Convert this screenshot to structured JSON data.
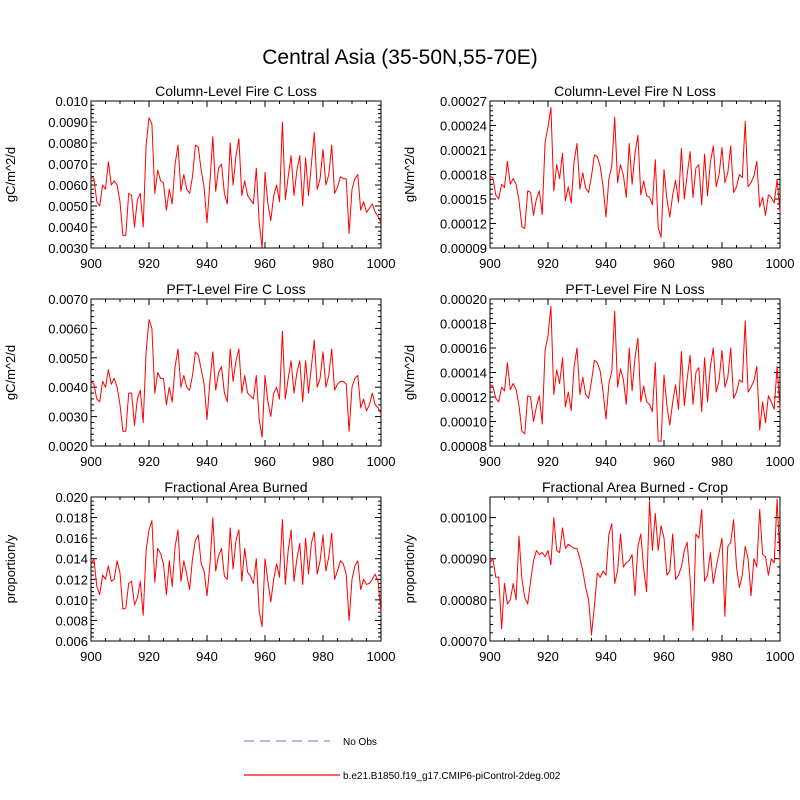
{
  "figure": {
    "title": "Central Asia (35-50N,55-70E)"
  },
  "legend": [
    {
      "label": "No Obs",
      "color": "#9a9ae8",
      "style": "dashed"
    },
    {
      "label": "b.e21.B1850.f19_g17.CMIP6-piControl-2deg.002",
      "color": "#ff0000",
      "style": "solid"
    }
  ],
  "chart_data": [
    {
      "type": "line",
      "title": "Column-Level Fire C Loss",
      "xlabel": "",
      "ylabel": "gC/m^2/d",
      "xlim": [
        900,
        1000
      ],
      "ylim": [
        0.003,
        0.01
      ],
      "xticks": [
        "900",
        "920",
        "940",
        "960",
        "980",
        "1000"
      ],
      "yticks": [
        "0.0030",
        "0.0040",
        "0.0050",
        "0.0060",
        "0.0070",
        "0.0080",
        "0.0090",
        "0.010"
      ],
      "x_start": 900,
      "x_step": 1,
      "series": [
        {
          "name": "b.e21.B1850.f19_g17.CMIP6-piControl-2deg.002",
          "color": "#ff0000",
          "values": [
            0.0064,
            0.0063,
            0.0052,
            0.005,
            0.006,
            0.0058,
            0.0071,
            0.006,
            0.0062,
            0.006,
            0.0052,
            0.0036,
            0.0036,
            0.0056,
            0.0055,
            0.004,
            0.0053,
            0.0056,
            0.004,
            0.0079,
            0.0092,
            0.0089,
            0.0056,
            0.0067,
            0.0062,
            0.0061,
            0.0048,
            0.0058,
            0.0051,
            0.007,
            0.0079,
            0.0057,
            0.0065,
            0.0058,
            0.0056,
            0.0064,
            0.0079,
            0.0078,
            0.0067,
            0.0059,
            0.0042,
            0.0061,
            0.0083,
            0.0057,
            0.0068,
            0.007,
            0.0056,
            0.0051,
            0.008,
            0.006,
            0.0074,
            0.0082,
            0.0055,
            0.0062,
            0.0055,
            0.0053,
            0.0051,
            0.0068,
            0.0042,
            0.003,
            0.0066,
            0.0051,
            0.0043,
            0.0055,
            0.006,
            0.0052,
            0.009,
            0.0053,
            0.0064,
            0.0074,
            0.0055,
            0.0067,
            0.0074,
            0.005,
            0.0073,
            0.0055,
            0.007,
            0.0085,
            0.0058,
            0.0063,
            0.0077,
            0.006,
            0.0065,
            0.0079,
            0.0056,
            0.0059,
            0.0064,
            0.0063,
            0.0063,
            0.0037,
            0.0058,
            0.0063,
            0.0065,
            0.0048,
            0.0052,
            0.0047,
            0.0049,
            0.0051,
            0.0047,
            0.0045,
            0.0042
          ]
        }
      ]
    },
    {
      "type": "line",
      "title": "Column-Level Fire N Loss",
      "xlabel": "",
      "ylabel": "gN/m^2/d",
      "xlim": [
        900,
        1000
      ],
      "ylim": [
        9e-05,
        0.00027
      ],
      "xticks": [
        "900",
        "920",
        "940",
        "960",
        "980",
        "1000"
      ],
      "yticks": [
        "0.00009",
        "0.00012",
        "0.00015",
        "0.00018",
        "0.00021",
        "0.00024",
        "0.00027"
      ],
      "x_start": 900,
      "x_step": 1,
      "series": [
        {
          "name": "b.e21.B1850.f19_g17.CMIP6-piControl-2deg.002",
          "color": "#ff0000",
          "values": [
            0.000178,
            0.000176,
            0.000155,
            0.00015,
            0.000168,
            0.000164,
            0.000196,
            0.000168,
            0.000175,
            0.000168,
            0.000148,
            0.000116,
            0.000114,
            0.00016,
            0.000158,
            0.00013,
            0.00015,
            0.00016,
            0.000131,
            0.00022,
            0.000238,
            0.000262,
            0.00016,
            0.000192,
            0.000175,
            0.000206,
            0.000148,
            0.000165,
            0.000145,
            0.000196,
            0.000218,
            0.000162,
            0.000182,
            0.000163,
            0.000158,
            0.000178,
            0.000204,
            0.000202,
            0.00019,
            0.000165,
            0.000128,
            0.000175,
            0.00019,
            0.00025,
            0.00017,
            0.000192,
            0.000179,
            0.000152,
            0.000218,
            0.000168,
            0.000206,
            0.000228,
            0.000155,
            0.000172,
            0.000154,
            0.000152,
            0.000143,
            0.000198,
            0.000115,
            0.000103,
            0.000186,
            0.00015,
            0.000128,
            0.000155,
            0.000173,
            0.000146,
            0.000212,
            0.00015,
            0.00018,
            0.000208,
            0.000152,
            0.000188,
            0.000192,
            0.000143,
            0.000205,
            0.000154,
            0.000195,
            0.000215,
            0.000165,
            0.00018,
            0.000213,
            0.00017,
            0.000182,
            0.000215,
            0.000158,
            0.000165,
            0.00018,
            0.000176,
            0.000245,
            0.000165,
            0.00017,
            0.000178,
            0.000196,
            0.00014,
            0.000152,
            0.00013,
            0.000155,
            0.000152,
            0.000145,
            0.000174,
            0.000133
          ]
        }
      ]
    },
    {
      "type": "line",
      "title": "PFT-Level Fire C Loss",
      "xlabel": "",
      "ylabel": "gC/m^2/d",
      "xlim": [
        900,
        1000
      ],
      "ylim": [
        0.002,
        0.007
      ],
      "xticks": [
        "900",
        "920",
        "940",
        "960",
        "980",
        "1000"
      ],
      "yticks": [
        "0.0020",
        "0.0030",
        "0.0040",
        "0.0050",
        "0.0060",
        "0.0070"
      ],
      "x_start": 900,
      "x_step": 1,
      "series": [
        {
          "name": "b.e21.B1850.f19_g17.CMIP6-piControl-2deg.002",
          "color": "#ff0000",
          "values": [
            0.0042,
            0.0041,
            0.0036,
            0.0035,
            0.0042,
            0.004,
            0.0046,
            0.0041,
            0.0043,
            0.004,
            0.0034,
            0.0025,
            0.0025,
            0.0038,
            0.0038,
            0.0027,
            0.0036,
            0.0039,
            0.0028,
            0.0052,
            0.0063,
            0.006,
            0.0038,
            0.0045,
            0.0043,
            0.0043,
            0.0034,
            0.004,
            0.0035,
            0.0047,
            0.0053,
            0.004,
            0.0044,
            0.004,
            0.0039,
            0.0044,
            0.0052,
            0.0051,
            0.0046,
            0.0041,
            0.0029,
            0.0042,
            0.0052,
            0.0039,
            0.0045,
            0.0047,
            0.0038,
            0.0035,
            0.0053,
            0.0042,
            0.0049,
            0.0053,
            0.0038,
            0.0044,
            0.0038,
            0.0037,
            0.0036,
            0.0044,
            0.0029,
            0.0023,
            0.0044,
            0.0035,
            0.003,
            0.0038,
            0.004,
            0.0036,
            0.0059,
            0.0036,
            0.0043,
            0.0049,
            0.0038,
            0.0045,
            0.0049,
            0.0035,
            0.0049,
            0.0038,
            0.0047,
            0.0056,
            0.004,
            0.0043,
            0.0052,
            0.004,
            0.0044,
            0.0053,
            0.0039,
            0.0041,
            0.0042,
            0.0042,
            0.0041,
            0.0025,
            0.004,
            0.0043,
            0.0044,
            0.0033,
            0.0036,
            0.0032,
            0.0034,
            0.0038,
            0.0034,
            0.0033,
            0.0031
          ]
        }
      ]
    },
    {
      "type": "line",
      "title": "PFT-Level Fire N Loss",
      "xlabel": "",
      "ylabel": "gN/m^2/d",
      "xlim": [
        900,
        1000
      ],
      "ylim": [
        8e-05,
        0.0002
      ],
      "xticks": [
        "900",
        "920",
        "940",
        "960",
        "980",
        "1000"
      ],
      "yticks": [
        "0.00008",
        "0.00010",
        "0.00012",
        "0.00014",
        "0.00016",
        "0.00018",
        "0.00020"
      ],
      "x_start": 900,
      "x_step": 1,
      "series": [
        {
          "name": "b.e21.B1850.f19_g17.CMIP6-piControl-2deg.002",
          "color": "#ff0000",
          "values": [
            0.00013,
            0.000129,
            0.000119,
            0.000116,
            0.000128,
            0.000125,
            0.000148,
            0.000126,
            0.000131,
            0.000126,
            0.000113,
            9.2e-05,
            9e-05,
            0.000121,
            0.00012,
            0.0001,
            0.000112,
            0.000121,
            9.8e-05,
            0.000158,
            0.00017,
            0.000194,
            0.000122,
            0.000142,
            0.000131,
            0.000152,
            0.000112,
            0.000124,
            0.000109,
            0.000145,
            0.00016,
            0.000122,
            0.000136,
            0.000122,
            0.000119,
            0.000133,
            0.00015,
            0.000148,
            0.000141,
            0.000124,
            0.000102,
            0.000131,
            0.000141,
            0.00019,
            0.000128,
            0.000143,
            0.000134,
            0.000114,
            0.00016,
            0.000125,
            0.000152,
            0.000168,
            0.000116,
            0.000129,
            0.000116,
            0.000114,
            0.000108,
            0.000148,
            8.4e-05,
            8.4e-05,
            0.000138,
            0.000113,
            9.7e-05,
            0.000116,
            0.00013,
            0.00011,
            0.000157,
            0.000113,
            0.000135,
            0.000154,
            0.000114,
            0.00014,
            0.000144,
            0.000108,
            0.000152,
            0.000116,
            0.000145,
            0.00016,
            0.000124,
            0.000134,
            0.000158,
            0.000128,
            0.000136,
            0.00016,
            0.000119,
            0.000124,
            0.000134,
            0.000132,
            0.000182,
            0.000124,
            0.000128,
            0.000133,
            0.000145,
            9.3e-05,
            0.000116,
            9.9e-05,
            0.000121,
            0.000116,
            0.00011,
            0.000145,
            0.00011
          ]
        }
      ]
    },
    {
      "type": "line",
      "title": "Fractional Area Burned",
      "xlabel": "",
      "ylabel": "proportion/y",
      "xlim": [
        900,
        1000
      ],
      "ylim": [
        0.006,
        0.02
      ],
      "xticks": [
        "900",
        "920",
        "940",
        "960",
        "980",
        "1000"
      ],
      "yticks": [
        "0.006",
        "0.008",
        "0.010",
        "0.012",
        "0.014",
        "0.016",
        "0.018",
        "0.020"
      ],
      "x_start": 900,
      "x_step": 1,
      "series": [
        {
          "name": "b.e21.B1850.f19_g17.CMIP6-piControl-2deg.002",
          "color": "#ff0000",
          "values": [
            0.0134,
            0.014,
            0.0113,
            0.0105,
            0.0124,
            0.012,
            0.0133,
            0.0118,
            0.012,
            0.0138,
            0.0126,
            0.0091,
            0.0092,
            0.0116,
            0.0118,
            0.0095,
            0.0102,
            0.0118,
            0.0085,
            0.0148,
            0.0168,
            0.0177,
            0.0117,
            0.015,
            0.0145,
            0.0135,
            0.0105,
            0.0138,
            0.0113,
            0.0152,
            0.0168,
            0.0118,
            0.0138,
            0.0125,
            0.011,
            0.014,
            0.0158,
            0.0163,
            0.0135,
            0.0128,
            0.0104,
            0.0134,
            0.018,
            0.0128,
            0.0143,
            0.015,
            0.0123,
            0.012,
            0.017,
            0.013,
            0.0158,
            0.0168,
            0.0118,
            0.015,
            0.0127,
            0.0123,
            0.0116,
            0.014,
            0.0089,
            0.0074,
            0.014,
            0.0118,
            0.0098,
            0.012,
            0.0135,
            0.0122,
            0.0178,
            0.0115,
            0.0148,
            0.0168,
            0.0118,
            0.014,
            0.0155,
            0.0115,
            0.016,
            0.0125,
            0.0155,
            0.0166,
            0.0125,
            0.0138,
            0.0163,
            0.0128,
            0.0142,
            0.0165,
            0.012,
            0.0128,
            0.0138,
            0.0135,
            0.0125,
            0.008,
            0.012,
            0.0133,
            0.0138,
            0.011,
            0.012,
            0.0115,
            0.0116,
            0.012,
            0.0125,
            0.0118,
            0.0087
          ]
        }
      ]
    },
    {
      "type": "line",
      "title": "Fractional Area Burned - Crop",
      "xlabel": "",
      "ylabel": "proportion/y",
      "xlim": [
        900,
        1000
      ],
      "ylim": [
        0.0007,
        0.00105
      ],
      "xticks": [
        "900",
        "920",
        "940",
        "960",
        "980",
        "1000"
      ],
      "yticks": [
        "0.00070",
        "0.00080",
        "0.00090",
        "0.00100"
      ],
      "x_start": 900,
      "x_step": 1,
      "series": [
        {
          "name": "b.e21.B1850.f19_g17.CMIP6-piControl-2deg.002",
          "color": "#ff0000",
          "values": [
            0.00089,
            0.0009,
            0.000855,
            0.000855,
            0.00073,
            0.00084,
            0.00079,
            0.0008,
            0.00084,
            0.0008,
            0.000955,
            0.00085,
            0.000805,
            0.00079,
            0.000845,
            0.000895,
            0.00092,
            0.00091,
            0.000915,
            0.000905,
            0.00092,
            0.000885,
            0.001,
            0.00092,
            0.000915,
            0.000975,
            0.000925,
            0.000935,
            0.00093,
            0.000925,
            0.000925,
            0.0009,
            0.00087,
            0.00083,
            0.0008,
            0.000715,
            0.000785,
            0.000865,
            0.000855,
            0.00087,
            0.00086,
            0.00096,
            0.000985,
            0.00084,
            0.00087,
            0.00096,
            0.00088,
            0.00089,
            0.000895,
            0.00091,
            0.00081,
            0.00093,
            0.00096,
            0.000875,
            0.00082,
            0.00104,
            0.00092,
            0.00101,
            0.00092,
            0.00098,
            0.00095,
            0.00086,
            0.00087,
            0.00096,
            0.00085,
            0.00086,
            0.00088,
            0.00092,
            0.00094,
            0.00085,
            0.000725,
            0.00096,
            0.00095,
            0.00102,
            0.000845,
            0.00086,
            0.000915,
            0.00084,
            0.00088,
            0.000915,
            0.00095,
            0.00076,
            0.00093,
            0.00094,
            0.000995,
            0.00088,
            0.00083,
            0.00086,
            0.00093,
            0.0009,
            0.00081,
            0.0009,
            0.00088,
            0.00102,
            0.00091,
            0.000905,
            0.00086,
            0.0009,
            0.00089,
            0.001045,
            0.00089
          ]
        }
      ]
    }
  ]
}
